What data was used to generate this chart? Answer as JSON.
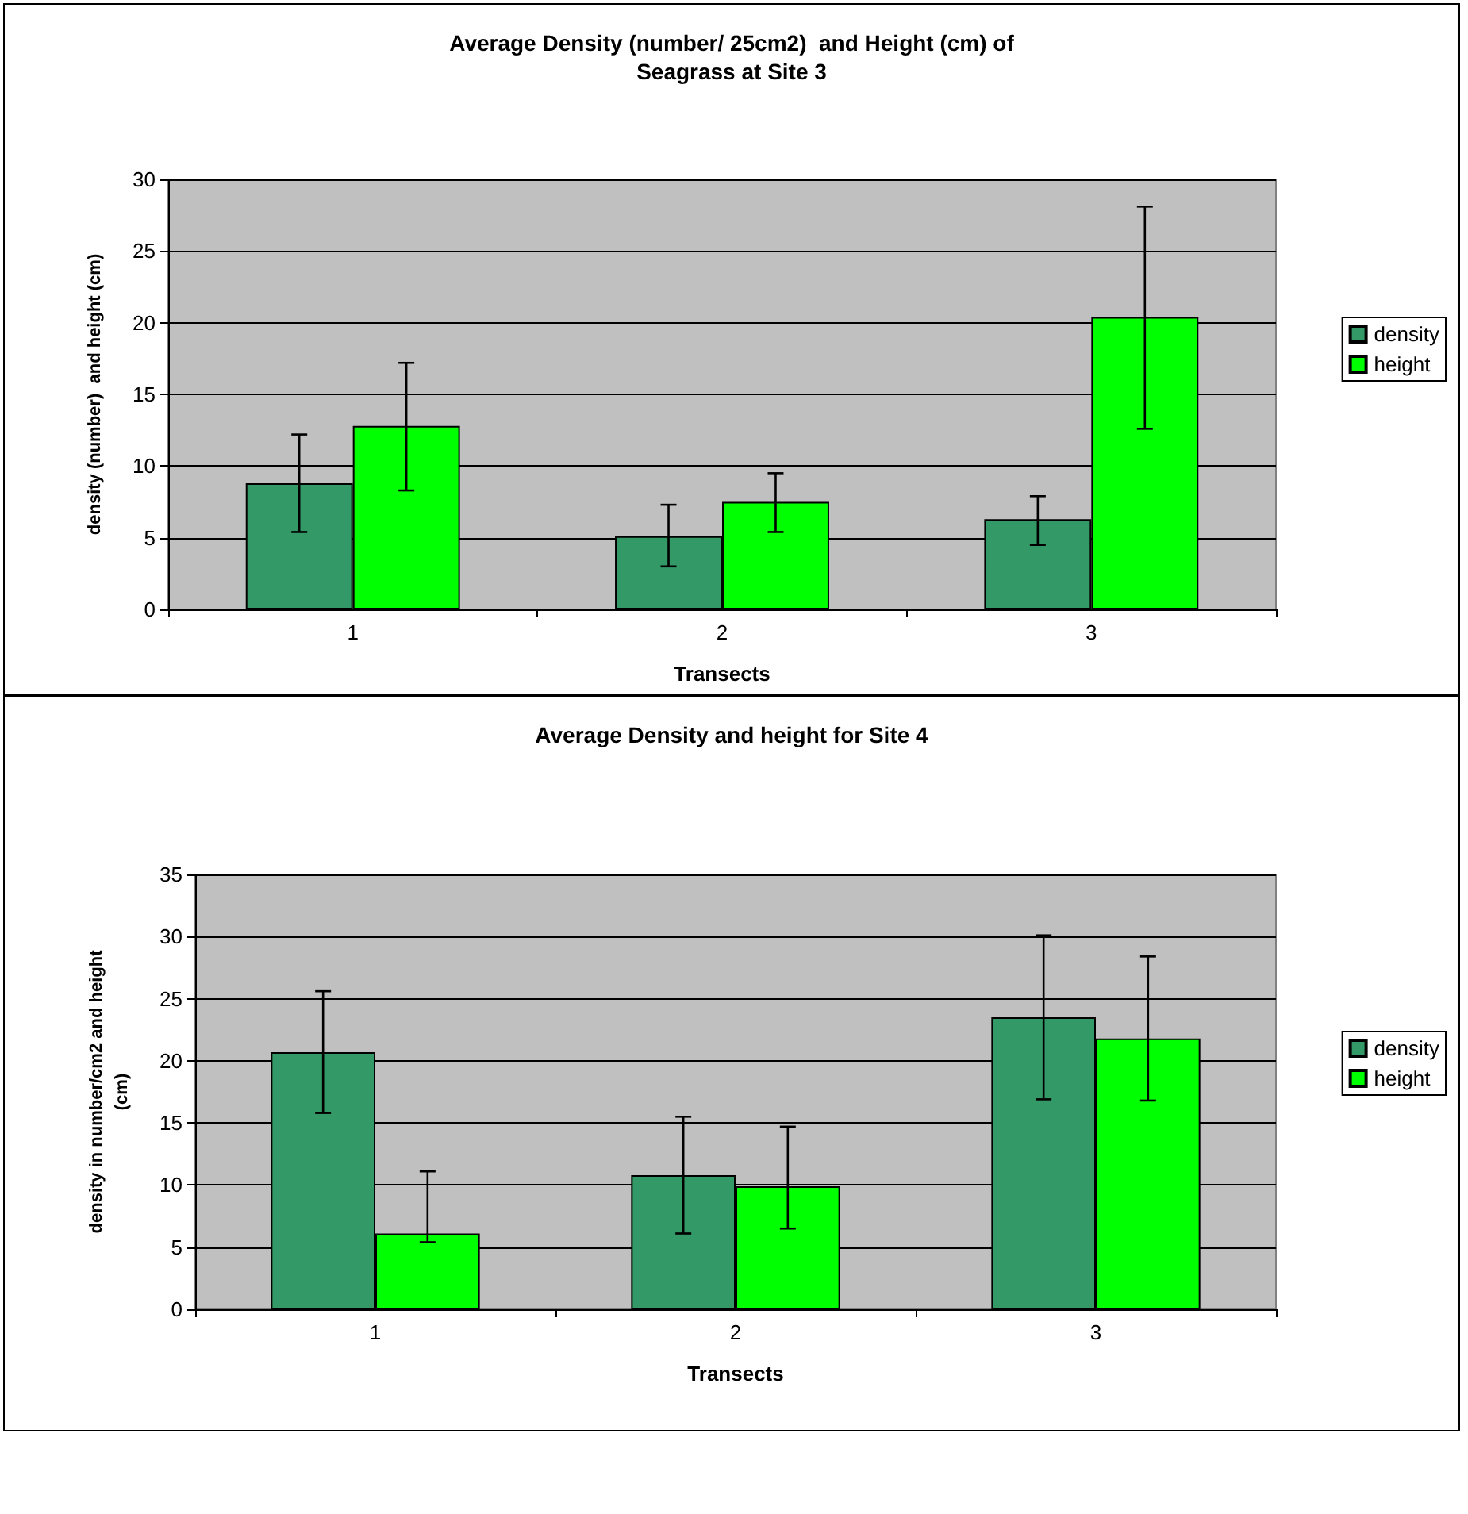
{
  "chart_data": [
    {
      "type": "bar",
      "title": "Average Density (number/ 25cm2)  and Height (cm) of\nSeagrass at Site 3",
      "xlabel": "Transects",
      "ylabel": "density (number)  and height (cm)",
      "categories": [
        "1",
        "2",
        "3"
      ],
      "series": [
        {
          "name": "density",
          "color": "#339966",
          "values": [
            8.8,
            5.1,
            6.3
          ],
          "errors": [
            [
              5.4,
              12.2
            ],
            [
              3.0,
              7.3
            ],
            [
              4.5,
              7.9
            ]
          ]
        },
        {
          "name": "height",
          "color": "#00ff00",
          "values": [
            12.8,
            7.5,
            20.4
          ],
          "errors": [
            [
              8.3,
              17.2
            ],
            [
              5.4,
              9.5
            ],
            [
              12.6,
              28.1
            ]
          ]
        }
      ],
      "ylim": [
        0,
        30
      ],
      "yticks": [
        0,
        5,
        10,
        15,
        20,
        25,
        30
      ],
      "grid": "y",
      "legend": "right"
    },
    {
      "type": "bar",
      "title": "Average Density and height for Site 4",
      "xlabel": "Transects",
      "ylabel": "density in number/cm2 and height\n(cm)",
      "categories": [
        "1",
        "2",
        "3"
      ],
      "series": [
        {
          "name": "density",
          "color": "#339966",
          "values": [
            20.7,
            10.8,
            23.5
          ],
          "errors": [
            [
              15.8,
              25.6
            ],
            [
              6.1,
              15.5
            ],
            [
              16.9,
              30.1
            ]
          ]
        },
        {
          "name": "height",
          "color": "#00ff00",
          "values": [
            6.1,
            9.9,
            21.8
          ],
          "errors": [
            [
              5.4,
              11.1
            ],
            [
              6.5,
              14.7
            ],
            [
              16.8,
              28.4
            ]
          ]
        }
      ],
      "ylim": [
        0,
        35
      ],
      "yticks": [
        0,
        5,
        10,
        15,
        20,
        25,
        30,
        35
      ],
      "grid": "y",
      "legend": "right"
    }
  ]
}
